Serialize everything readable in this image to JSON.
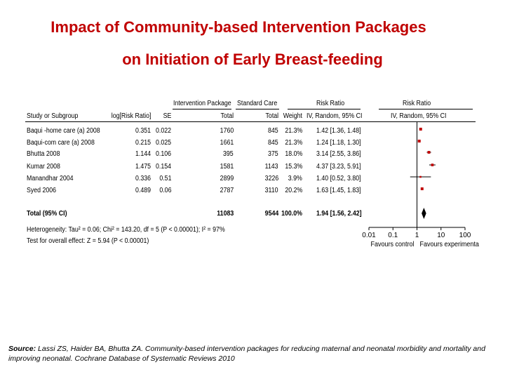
{
  "title": {
    "line1": "Impact of Community-based Intervention Packages",
    "line2": "on Initiation of Early Breast-feeding"
  },
  "headers": {
    "intervention_package": "Intervention Package",
    "standard_care": "Standard Care",
    "risk_ratio": "Risk Ratio",
    "risk_ratio_plot": "Risk Ratio",
    "study": "Study or Subgroup",
    "log_rr": "log[Risk Ratio]",
    "se": "SE",
    "total_int": "Total",
    "total_std": "Total",
    "weight": "Weight",
    "method": "IV, Random, 95% CI",
    "method_plot": "IV, Random, 95% CI"
  },
  "studies": [
    {
      "name": "Baqui -home care (a) 2008",
      "log_rr": "0.351",
      "se": "0.022",
      "total_int": "1760",
      "total_std": "845",
      "weight": "21.3%",
      "ci": "1.42 [1.36, 1.48]"
    },
    {
      "name": "Baqui-com care (a) 2008",
      "log_rr": "0.215",
      "se": "0.025",
      "total_int": "1661",
      "total_std": "845",
      "weight": "21.3%",
      "ci": "1.24 [1.18, 1.30]"
    },
    {
      "name": "Bhutta 2008",
      "log_rr": "1.144",
      "se": "0.106",
      "total_int": "395",
      "total_std": "375",
      "weight": "18.0%",
      "ci": "3.14 [2.55, 3.86]"
    },
    {
      "name": "Kumar 2008",
      "log_rr": "1.475",
      "se": "0.154",
      "total_int": "1581",
      "total_std": "1143",
      "weight": "15.3%",
      "ci": "4.37 [3.23, 5.91]"
    },
    {
      "name": "Manandhar 2004",
      "log_rr": "0.336",
      "se": "0.51",
      "total_int": "2899",
      "total_std": "3226",
      "weight": "3.9%",
      "ci": "1.40 [0.52, 3.80]"
    },
    {
      "name": "Syed 2006",
      "log_rr": "0.489",
      "se": "0.06",
      "total_int": "2787",
      "total_std": "3110",
      "weight": "20.2%",
      "ci": "1.63 [1.45, 1.83]"
    }
  ],
  "total": {
    "label": "Total (95% CI)",
    "total_int": "11083",
    "total_std": "9544",
    "weight": "100.0%",
    "ci": "1.94 [1.56, 2.42]"
  },
  "heterogeneity": "Heterogeneity: Tau² = 0.06; Chi² = 143.20, df = 5 (P < 0.00001); I² = 97%",
  "overall_effect": "Test for overall effect: Z = 5.94 (P < 0.00001)",
  "source": {
    "label": "Source:",
    "text": "Lassi ZS, Haider BA, Bhutta ZA. Community-based intervention packages for reducing maternal and neonatal morbidity and mortality and improving neonatal. Cochrane Database of Systematic Reviews 2010"
  },
  "chart_data": {
    "type": "forest",
    "scale": "log",
    "x_ticks": [
      "0.01",
      "0.1",
      "1",
      "10",
      "100"
    ],
    "x_tick_values": [
      0.01,
      0.1,
      1,
      10,
      100
    ],
    "label_left": "Favours control",
    "label_right": "Favours experimenta",
    "color": "#c00000",
    "points": [
      {
        "rr": 1.42,
        "lo": 1.36,
        "hi": 1.48,
        "weight": 21.3
      },
      {
        "rr": 1.24,
        "lo": 1.18,
        "hi": 1.3,
        "weight": 21.3
      },
      {
        "rr": 3.14,
        "lo": 2.55,
        "hi": 3.86,
        "weight": 18.0
      },
      {
        "rr": 4.37,
        "lo": 3.23,
        "hi": 5.91,
        "weight": 15.3
      },
      {
        "rr": 1.4,
        "lo": 0.52,
        "hi": 3.8,
        "weight": 3.9
      },
      {
        "rr": 1.63,
        "lo": 1.45,
        "hi": 1.83,
        "weight": 20.2
      }
    ],
    "pooled": {
      "rr": 1.94,
      "lo": 1.56,
      "hi": 2.42
    }
  }
}
